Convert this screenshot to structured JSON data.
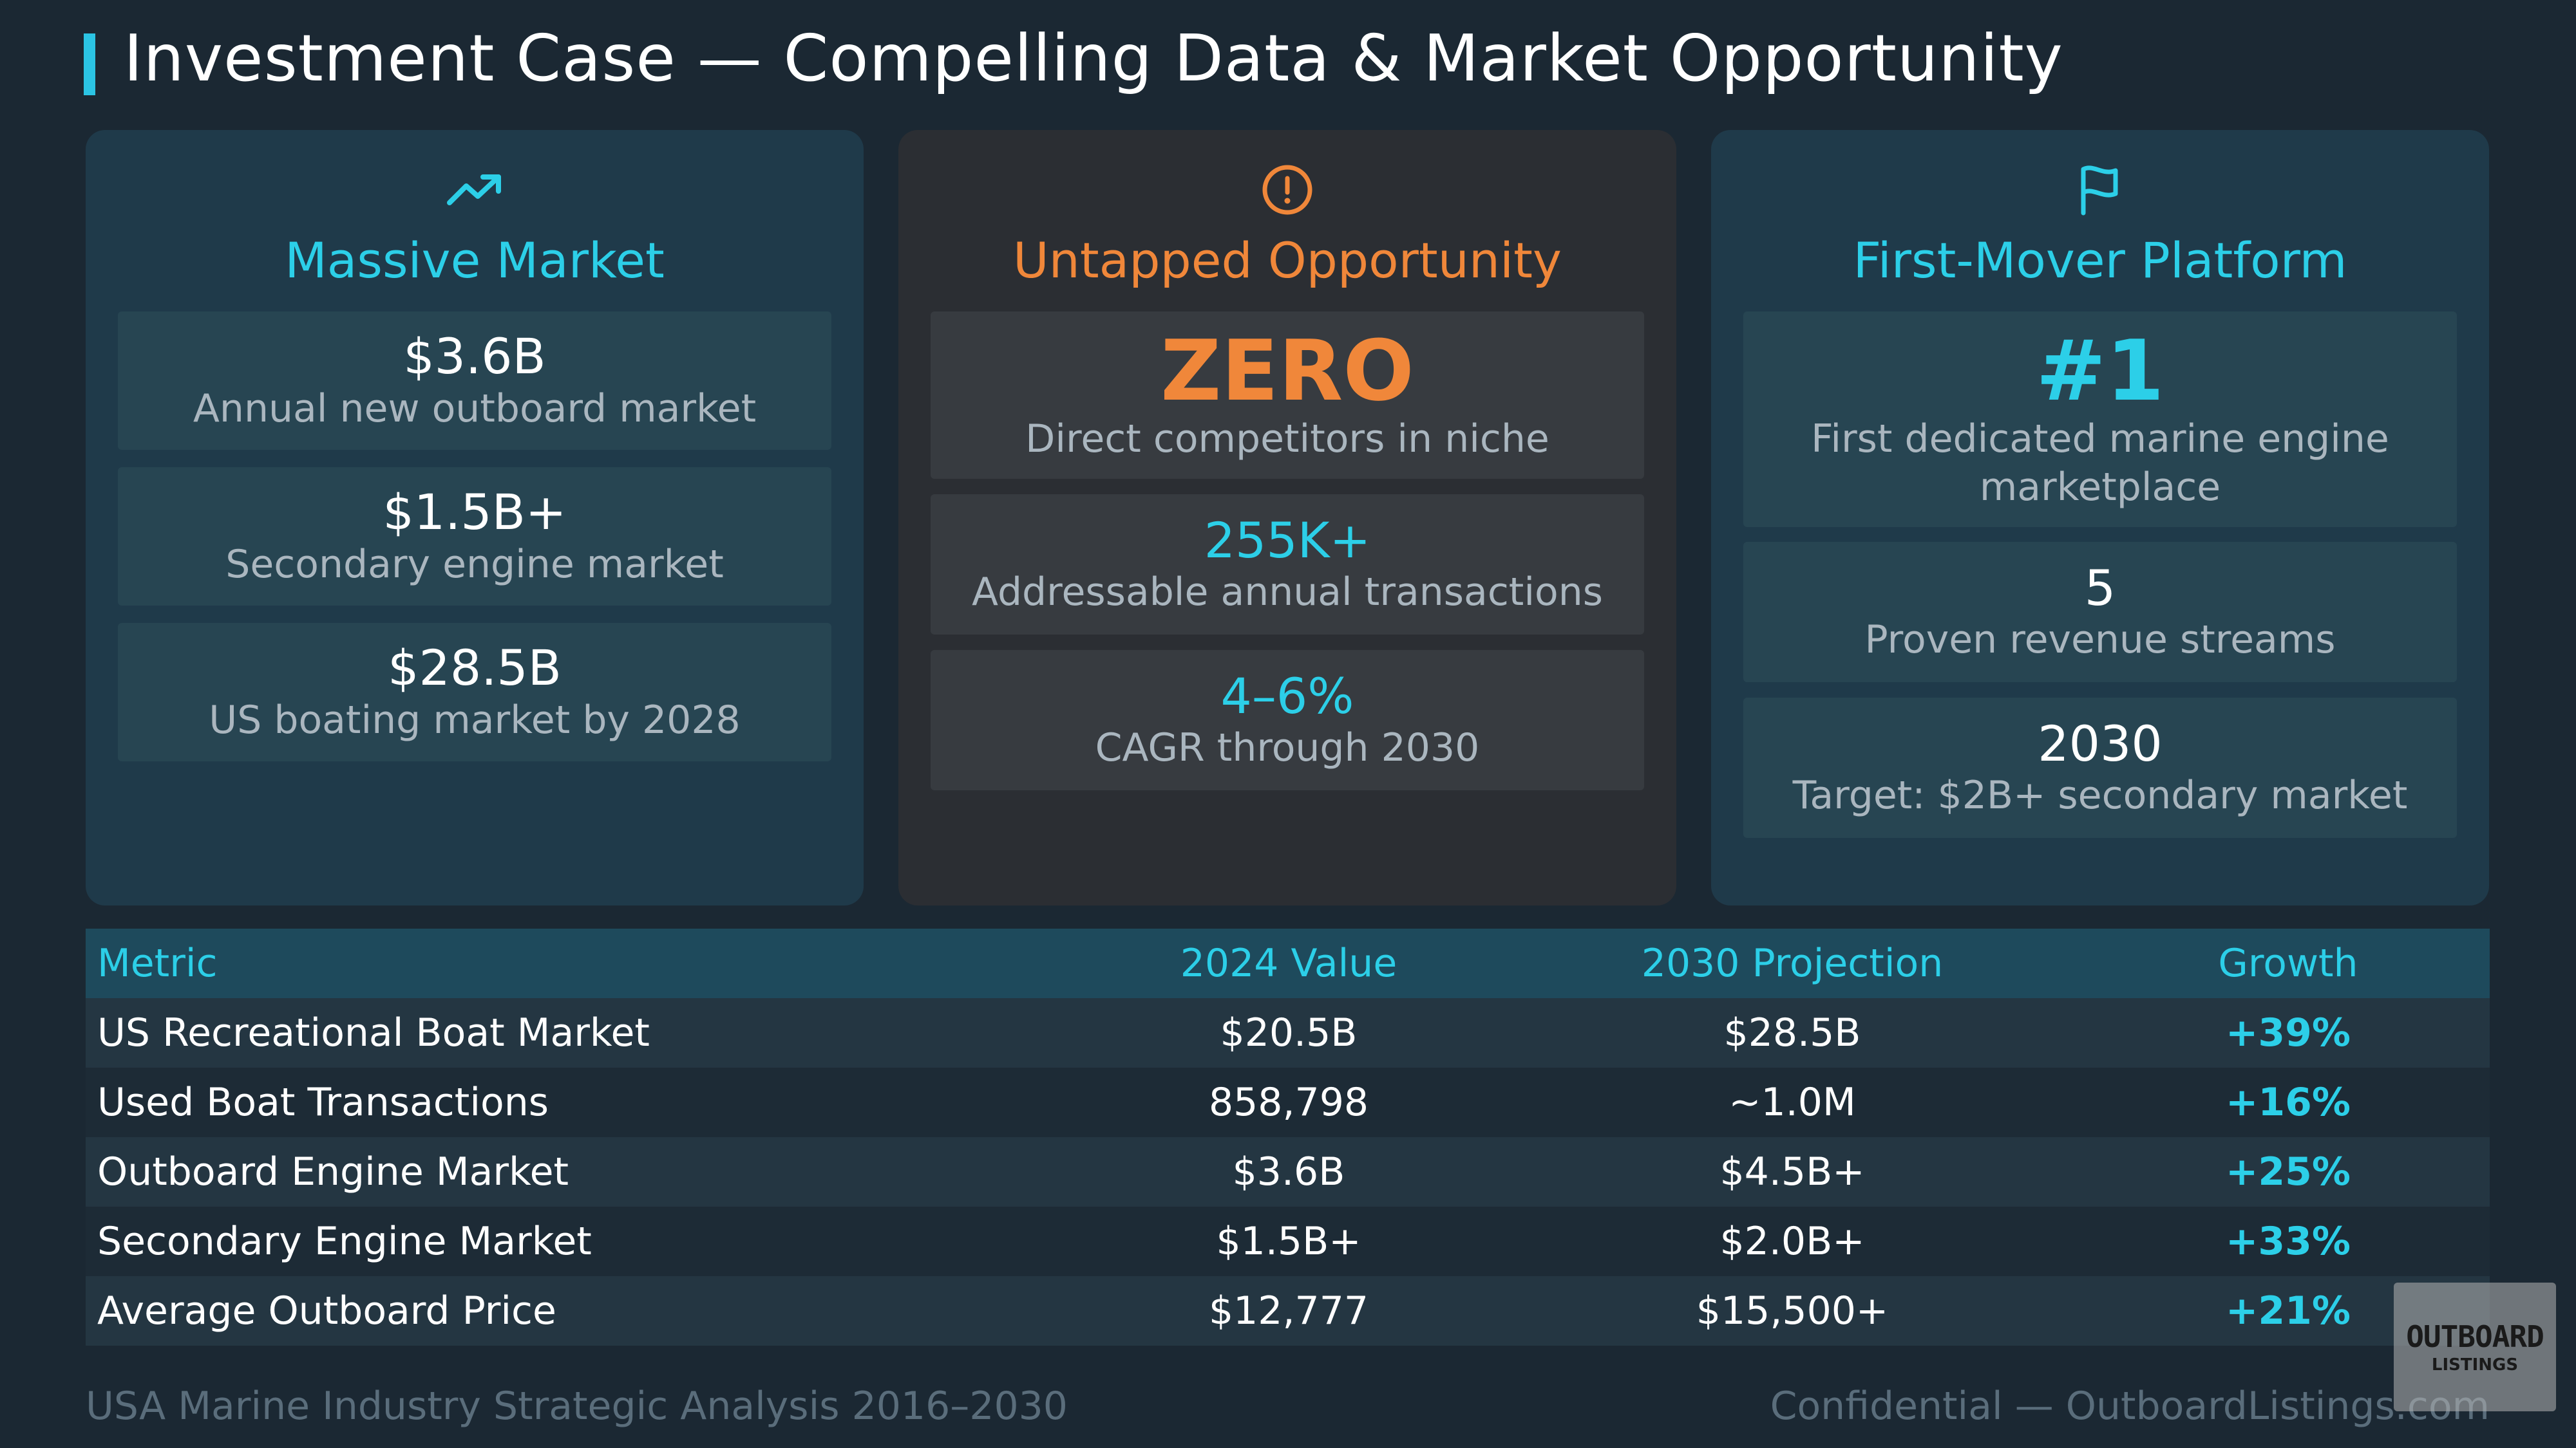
{
  "page": {
    "title": "Investment Case — Compelling Data & Market Opportunity"
  },
  "cards": [
    {
      "icon": "trending-up-icon",
      "heading": "Massive Market",
      "stats": [
        {
          "value": "$3.6B",
          "label": "Annual new outboard market"
        },
        {
          "value": "$1.5B+",
          "label": "Secondary engine market"
        },
        {
          "value": "$28.5B",
          "label": "US boating market by 2028"
        }
      ]
    },
    {
      "icon": "alert-circle-icon",
      "heading": "Untapped Opportunity",
      "stats": [
        {
          "value": "ZERO",
          "label": "Direct competitors in niche"
        },
        {
          "value": "255K+",
          "label": "Addressable annual transactions"
        },
        {
          "value": "4–6%",
          "label": "CAGR through 2030"
        }
      ]
    },
    {
      "icon": "flag-icon",
      "heading": "First-Mover Platform",
      "stats": [
        {
          "value": "#1",
          "label": "First dedicated marine engine marketplace"
        },
        {
          "value": "5",
          "label": "Proven revenue streams"
        },
        {
          "value": "2030",
          "label": "Target: $2B+ secondary market"
        }
      ]
    }
  ],
  "table": {
    "headers": [
      "Metric",
      "2024 Value",
      "2030 Projection",
      "Growth"
    ],
    "rows": [
      [
        "US Recreational Boat Market",
        "$20.5B",
        "$28.5B",
        "+39%"
      ],
      [
        "Used Boat Transactions",
        "858,798",
        "~1.0M",
        "+16%"
      ],
      [
        "Outboard Engine Market",
        "$3.6B",
        "$4.5B+",
        "+25%"
      ],
      [
        "Secondary Engine Market",
        "$1.5B+",
        "$2.0B+",
        "+33%"
      ],
      [
        "Average Outboard Price",
        "$12,777",
        "$15,500+",
        "+21%"
      ]
    ]
  },
  "footer": {
    "left": "USA Marine Industry Strategic Analysis 2016–2030",
    "right": "Confidential — OutboardListings.com"
  },
  "logo": {
    "line1": "OUTBOARD",
    "line2": "LISTINGS"
  },
  "colors": {
    "background": "#1b2833",
    "accent_cyan": "#2ccfe8",
    "accent_orange": "#f0873a"
  }
}
